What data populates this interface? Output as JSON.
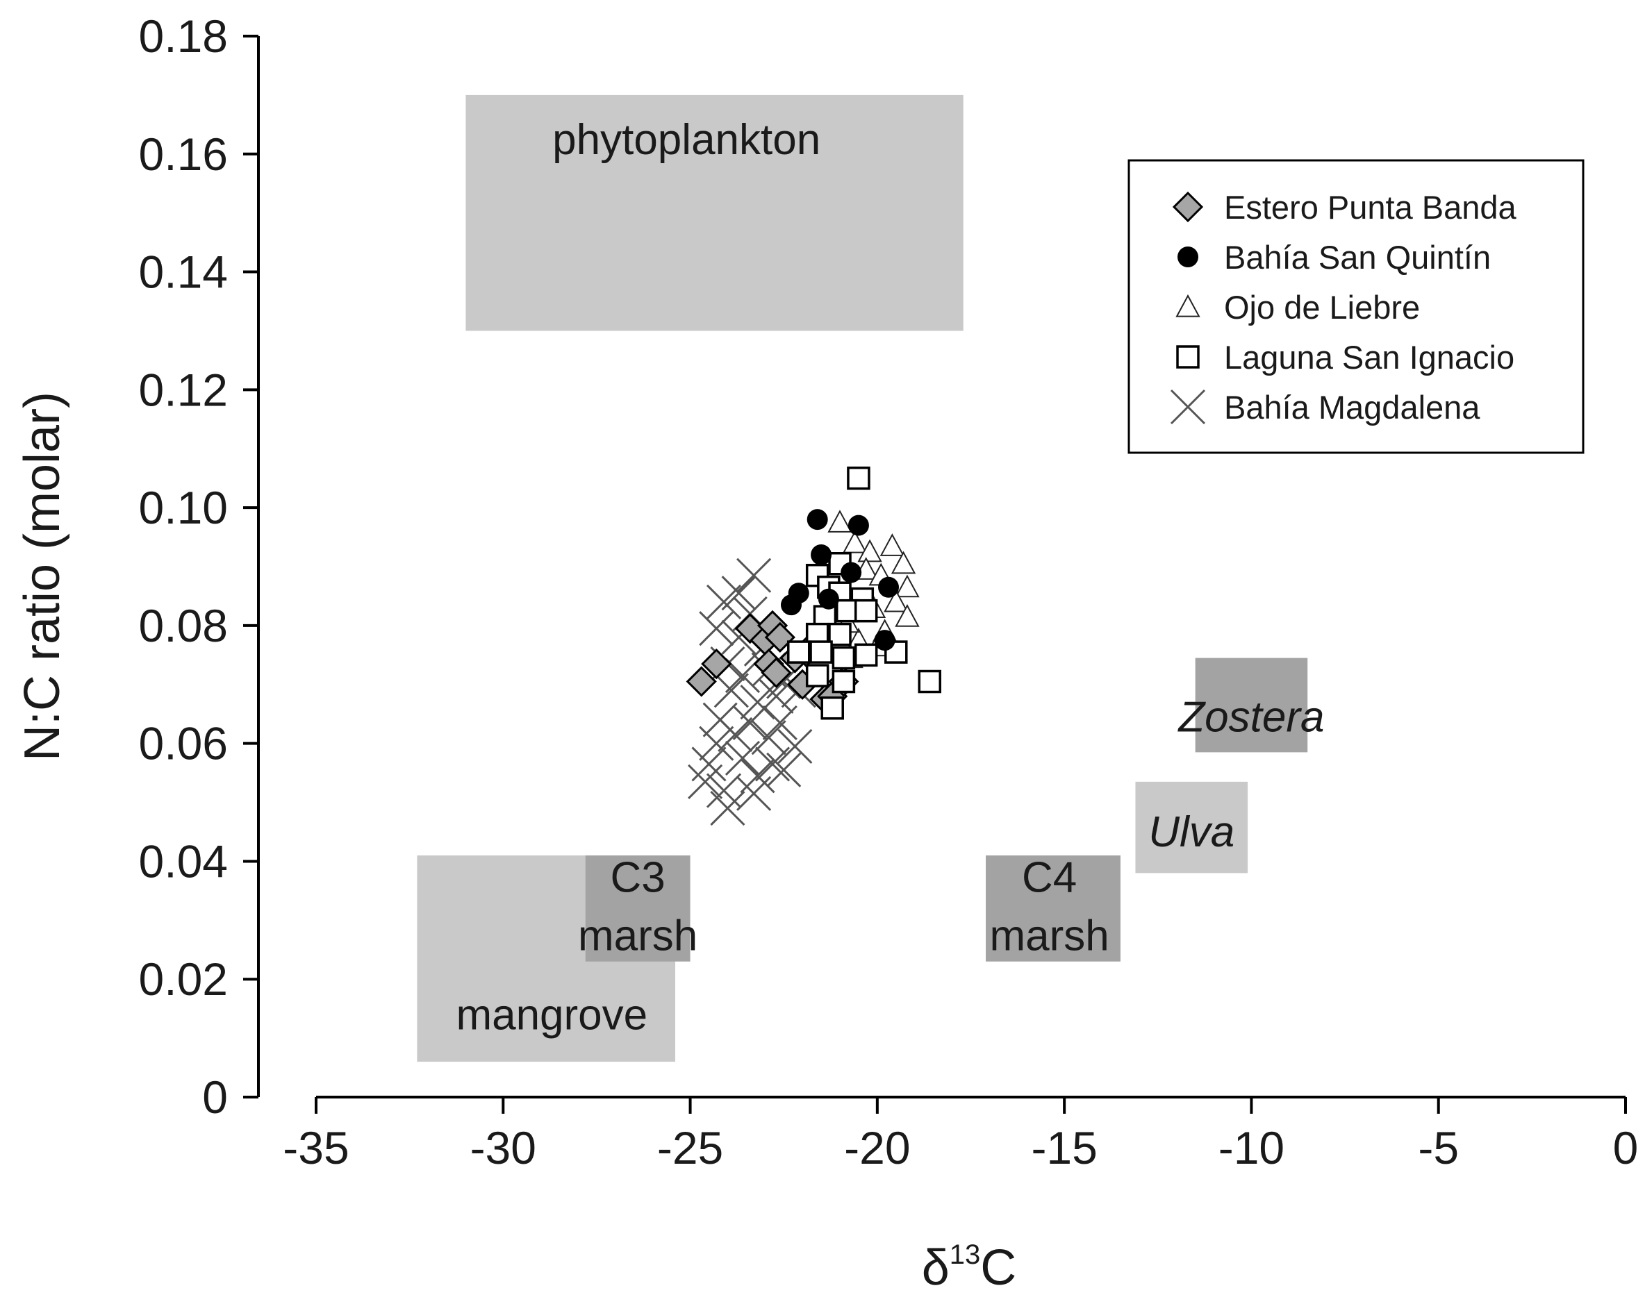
{
  "chart_data": {
    "type": "scatter",
    "title": "",
    "xlabel": "δ13C",
    "xlabel_parts": {
      "base": "δ",
      "sup": "13",
      "tail": "C"
    },
    "ylabel": "N:C ratio (molar)",
    "xlim": [
      -35,
      0
    ],
    "ylim": [
      0,
      0.18
    ],
    "x_ticks": [
      -35,
      -30,
      -25,
      -20,
      -15,
      -10,
      -5,
      0
    ],
    "x_tick_labels": [
      "-35",
      "-30",
      "-25",
      "-20",
      "-15",
      "-10",
      "-5",
      "0"
    ],
    "y_ticks": [
      0,
      0.02,
      0.04,
      0.06,
      0.08,
      0.1,
      0.12,
      0.14,
      0.16,
      0.18
    ],
    "y_tick_labels": [
      "0",
      "0.02",
      "0.04",
      "0.06",
      "0.08",
      "0.10",
      "0.12",
      "0.14",
      "0.16",
      "0.18"
    ],
    "legend_position": "top-right",
    "regions": [
      {
        "name": "phytoplankton",
        "lines": [
          "phytoplankton"
        ],
        "italic": false,
        "x": [
          -31,
          -17.7
        ],
        "y": [
          0.13,
          0.17
        ],
        "color": "#c9c9c9",
        "label_at": [
          -25.1,
          0.16
        ]
      },
      {
        "name": "mangrove",
        "lines": [
          "mangrove"
        ],
        "italic": false,
        "x": [
          -32.3,
          -25.4
        ],
        "y": [
          0.006,
          0.041
        ],
        "color": "#c9c9c9",
        "label_at": [
          -28.7,
          0.0115
        ]
      },
      {
        "name": "c3-marsh",
        "lines": [
          "C3",
          "marsh"
        ],
        "italic": false,
        "x": [
          -27.8,
          -25
        ],
        "y": [
          0.023,
          0.041
        ],
        "color": "#a3a3a3",
        "label_at": [
          -26.4,
          0.0348
        ]
      },
      {
        "name": "c4-marsh",
        "lines": [
          "C4",
          "marsh"
        ],
        "italic": false,
        "x": [
          -17.1,
          -13.5
        ],
        "y": [
          0.023,
          0.041
        ],
        "color": "#a3a3a3",
        "label_at": [
          -15.4,
          0.0348
        ]
      },
      {
        "name": "ulva",
        "lines": [
          "Ulva"
        ],
        "italic": true,
        "x": [
          -13.1,
          -10.1
        ],
        "y": [
          0.038,
          0.0535
        ],
        "color": "#c9c9c9",
        "label_at": [
          -11.6,
          0.0425
        ]
      },
      {
        "name": "zostera",
        "lines": [
          "Zostera"
        ],
        "italic": true,
        "x": [
          -11.5,
          -8.5
        ],
        "y": [
          0.0585,
          0.0745
        ],
        "color": "#a3a3a3",
        "label_at": [
          -10,
          0.062
        ]
      }
    ],
    "series": [
      {
        "name": "Estero Punta Banda",
        "marker": "diamond",
        "fill": "#a6a6a6",
        "points": [
          [
            -24.3,
            0.0735
          ],
          [
            -24.7,
            0.0705
          ],
          [
            -23.4,
            0.0795
          ],
          [
            -23,
            0.0775
          ],
          [
            -22.8,
            0.08
          ],
          [
            -22.6,
            0.078
          ],
          [
            -22.9,
            0.0735
          ],
          [
            -22.7,
            0.072
          ],
          [
            -22.2,
            0.0745
          ],
          [
            -21.9,
            0.0755
          ],
          [
            -22,
            0.07
          ],
          [
            -21.4,
            0.0675
          ],
          [
            -21.2,
            0.068
          ],
          [
            -20.9,
            0.0705
          ]
        ]
      },
      {
        "name": "Bahía San Quintín",
        "marker": "circle",
        "fill": "#000000",
        "points": [
          [
            -21.6,
            0.098
          ],
          [
            -20.5,
            0.097
          ],
          [
            -21.5,
            0.092
          ],
          [
            -20.7,
            0.089
          ],
          [
            -22.1,
            0.0855
          ],
          [
            -22.3,
            0.0835
          ],
          [
            -19.7,
            0.0865
          ],
          [
            -19.8,
            0.0775
          ],
          [
            -21.3,
            0.0845
          ]
        ]
      },
      {
        "name": "Ojo de Liebre",
        "marker": "triangle",
        "fill": "#ffffff",
        "points": [
          [
            -21,
            0.0975
          ],
          [
            -20.6,
            0.094
          ],
          [
            -20.2,
            0.0925
          ],
          [
            -19.6,
            0.0935
          ],
          [
            -19.3,
            0.0905
          ],
          [
            -20.3,
            0.0895
          ],
          [
            -19.9,
            0.0885
          ],
          [
            -19.2,
            0.0865
          ],
          [
            -20.1,
            0.083
          ],
          [
            -19.5,
            0.084
          ],
          [
            -19.2,
            0.0815
          ],
          [
            -19.8,
            0.079
          ],
          [
            -20.5,
            0.0775
          ],
          [
            -20,
            0.0765
          ],
          [
            -20.7,
            0.0745
          ],
          [
            -20.8,
            0.0805
          ]
        ]
      },
      {
        "name": "Laguna San Ignacio",
        "marker": "square",
        "fill": "#ffffff",
        "points": [
          [
            -20.5,
            0.105
          ],
          [
            -21,
            0.0905
          ],
          [
            -21.6,
            0.0885
          ],
          [
            -21.3,
            0.0865
          ],
          [
            -21,
            0.0855
          ],
          [
            -20.4,
            0.0845
          ],
          [
            -21.4,
            0.0815
          ],
          [
            -20.8,
            0.0825
          ],
          [
            -20.3,
            0.0825
          ],
          [
            -21.6,
            0.0785
          ],
          [
            -21,
            0.0785
          ],
          [
            -22.1,
            0.0755
          ],
          [
            -21.5,
            0.0755
          ],
          [
            -20.9,
            0.0745
          ],
          [
            -20.3,
            0.075
          ],
          [
            -19.5,
            0.0755
          ],
          [
            -21.6,
            0.0715
          ],
          [
            -20.9,
            0.0705
          ],
          [
            -21.2,
            0.066
          ],
          [
            -18.6,
            0.0705
          ]
        ]
      },
      {
        "name": "Bahía Magdalena",
        "marker": "x",
        "fill": "none",
        "points": [
          [
            -23.3,
            0.0885
          ],
          [
            -23.7,
            0.0855
          ],
          [
            -24.1,
            0.084
          ],
          [
            -23.4,
            0.082
          ],
          [
            -24.3,
            0.0795
          ],
          [
            -23.7,
            0.078
          ],
          [
            -23.1,
            0.076
          ],
          [
            -24,
            0.0735
          ],
          [
            -23.6,
            0.0715
          ],
          [
            -22.9,
            0.0725
          ],
          [
            -22.5,
            0.0705
          ],
          [
            -23.9,
            0.069
          ],
          [
            -23.2,
            0.067
          ],
          [
            -22.7,
            0.068
          ],
          [
            -22.1,
            0.069
          ],
          [
            -24.2,
            0.064
          ],
          [
            -23.4,
            0.0635
          ],
          [
            -22.6,
            0.0635
          ],
          [
            -24.3,
            0.06
          ],
          [
            -23.8,
            0.0615
          ],
          [
            -22.9,
            0.061
          ],
          [
            -22.2,
            0.0595
          ],
          [
            -24.5,
            0.0565
          ],
          [
            -23.6,
            0.0575
          ],
          [
            -22.8,
            0.0565
          ],
          [
            -24.6,
            0.0535
          ],
          [
            -24.1,
            0.052
          ],
          [
            -23.2,
            0.0545
          ],
          [
            -22.5,
            0.0555
          ],
          [
            -24,
            0.049
          ],
          [
            -23.3,
            0.0515
          ]
        ]
      }
    ]
  }
}
